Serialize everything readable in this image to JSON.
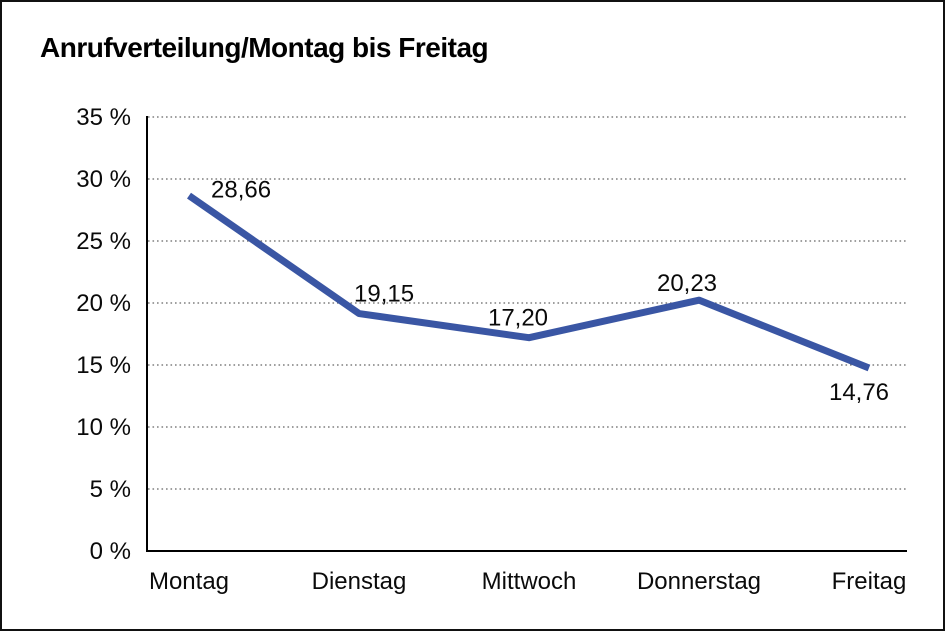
{
  "window": {
    "title": "Anrufverteilung/Montag bis Freitag"
  },
  "chart_data": {
    "type": "line",
    "title": "Anrufverteilung/Montag bis Freitag",
    "categories": [
      "Montag",
      "Dienstag",
      "Mittwoch",
      "Donnerstag",
      "Freitag"
    ],
    "series": [
      {
        "name": "Anrufverteilung",
        "values": [
          28.66,
          19.15,
          17.2,
          20.23,
          14.76
        ]
      }
    ],
    "point_labels": [
      "28,66",
      "19,15",
      "17,20",
      "20,23",
      "14,76"
    ],
    "xlabel": "",
    "ylabel": "",
    "y_axis": {
      "min": 0,
      "max": 35,
      "step": 5,
      "unit": "%",
      "tick_labels": [
        "0 %",
        "5 %",
        "10 %",
        "15 %",
        "20 %",
        "25 %",
        "30 %",
        "35 %"
      ]
    },
    "grid": "horizontal-dotted",
    "legend": "none",
    "colors": {
      "line": "#3A56A4",
      "axis": "#000000",
      "gridline": "#666666",
      "text": "#0a0a0a"
    }
  }
}
